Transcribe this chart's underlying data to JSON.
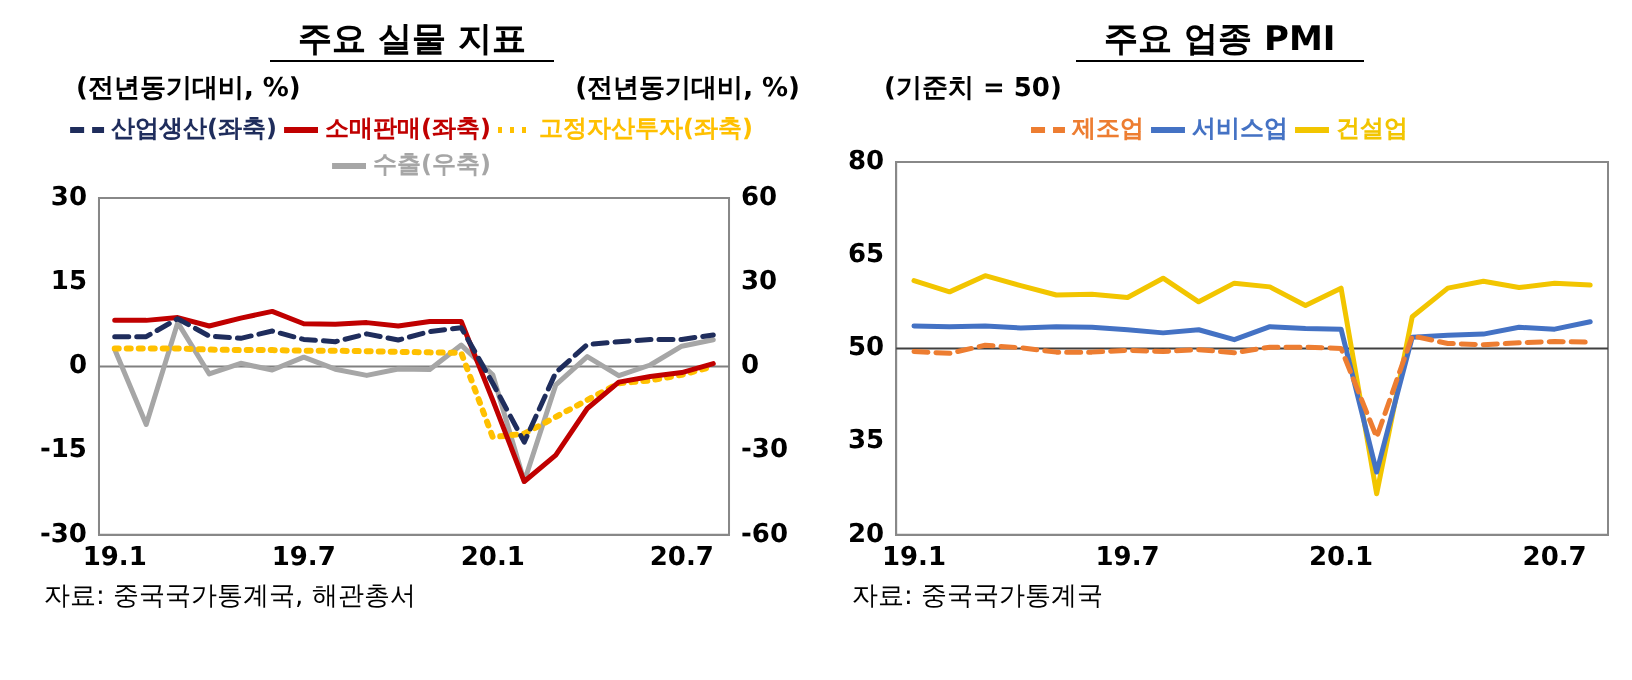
{
  "chart_data": [
    {
      "type": "line",
      "title": "주요 실물 지표",
      "ylabel": "(전년동기대비, %)",
      "y2label": "(전년동기대비, %)",
      "categories": [
        "19.1",
        null,
        null,
        null,
        null,
        null,
        "19.7",
        null,
        null,
        null,
        null,
        null,
        "20.1",
        null,
        null,
        null,
        null,
        null,
        "20.7",
        null
      ],
      "series": [
        {
          "name": "산업생산(좌축)",
          "color": "#1f2d5c",
          "line_style": "dashed",
          "values": [
            5.3,
            5.3,
            8.5,
            5.4,
            5.0,
            6.3,
            4.8,
            4.4,
            5.8,
            4.7,
            6.2,
            6.9,
            -3,
            -13.5,
            -1.1,
            3.9,
            4.4,
            4.8,
            4.8,
            5.6
          ]
        },
        {
          "name": "소매판매(좌축)",
          "color": "#c00000",
          "line_style": "solid",
          "values": [
            8.2,
            8.2,
            8.7,
            7.2,
            8.6,
            9.8,
            7.6,
            7.5,
            7.8,
            7.2,
            8.0,
            8.0,
            -6,
            -20.5,
            -15.8,
            -7.5,
            -2.8,
            -1.8,
            -1.1,
            0.5
          ]
        },
        {
          "name": "고정자산투자(좌축)",
          "color": "#ffc000",
          "line_style": "dotted",
          "values": [
            3.2,
            3.2,
            3.2,
            3.0,
            2.9,
            2.9,
            2.8,
            2.8,
            2.7,
            2.6,
            2.5,
            2.4,
            -12.6,
            -12,
            -9,
            -6,
            -3,
            -2.5,
            -1.5,
            0
          ]
        },
        {
          "name": "수출(우축)",
          "color": "#a6a6a6",
          "line_style": "solid",
          "axis": "y2",
          "values": [
            6,
            -20.7,
            15.6,
            -2.7,
            1.1,
            -1.3,
            3.3,
            -1,
            -3.2,
            -0.9,
            -1.1,
            7.6,
            -3,
            -41,
            -6.6,
            3.5,
            -3.3,
            0.5,
            7.2,
            9.5
          ]
        }
      ],
      "ylim": [
        -30,
        30
      ],
      "yticks": [
        -30,
        -15,
        0,
        15,
        30
      ],
      "y2lim": [
        -60,
        60
      ],
      "y2ticks": [
        -60,
        -30,
        0,
        30,
        60
      ],
      "ref_lines": [
        {
          "axis": "y",
          "value": 0,
          "color": "#808080"
        }
      ],
      "grid": false,
      "legend": "top",
      "marker": "none",
      "annotations": [
        "자료: 중국국가통계국, 해관총서"
      ]
    },
    {
      "type": "line",
      "title": "주요 업종 PMI",
      "ylabel": "(기준치 = 50)",
      "categories": [
        "19.1",
        null,
        null,
        null,
        null,
        null,
        "19.7",
        null,
        null,
        null,
        null,
        null,
        "20.1",
        null,
        null,
        null,
        null,
        null,
        "20.7",
        null
      ],
      "series": [
        {
          "name": "제조업",
          "color": "#ed7d31",
          "line_style": "dashed",
          "values": [
            49.5,
            49.2,
            50.5,
            50.1,
            49.4,
            49.4,
            49.7,
            49.5,
            49.8,
            49.3,
            50.2,
            50.2,
            50.0,
            35.7,
            52.0,
            50.8,
            50.6,
            50.9,
            51.1,
            51.0
          ]
        },
        {
          "name": "서비스업",
          "color": "#4472c4",
          "line_style": "solid",
          "values": [
            53.6,
            53.5,
            53.6,
            53.3,
            53.5,
            53.4,
            53.0,
            52.5,
            53.0,
            51.4,
            53.5,
            53.2,
            53.1,
            30.1,
            51.8,
            52.1,
            52.3,
            53.4,
            53.1,
            54.3
          ]
        },
        {
          "name": "건설업",
          "color": "#f2c500",
          "line_style": "solid",
          "values": [
            60.9,
            59.1,
            61.7,
            60.1,
            58.6,
            58.7,
            58.2,
            61.3,
            57.5,
            60.5,
            59.9,
            56.9,
            59.7,
            26.6,
            55.1,
            59.7,
            60.8,
            59.8,
            60.5,
            60.2
          ]
        }
      ],
      "ylim": [
        20,
        80
      ],
      "yticks": [
        20,
        35,
        50,
        65,
        80
      ],
      "ref_lines": [
        {
          "axis": "y",
          "value": 50,
          "color": "#404040"
        }
      ],
      "grid": false,
      "legend": "top",
      "marker": "none",
      "annotations": [
        "자료: 중국국가통계국"
      ]
    }
  ]
}
